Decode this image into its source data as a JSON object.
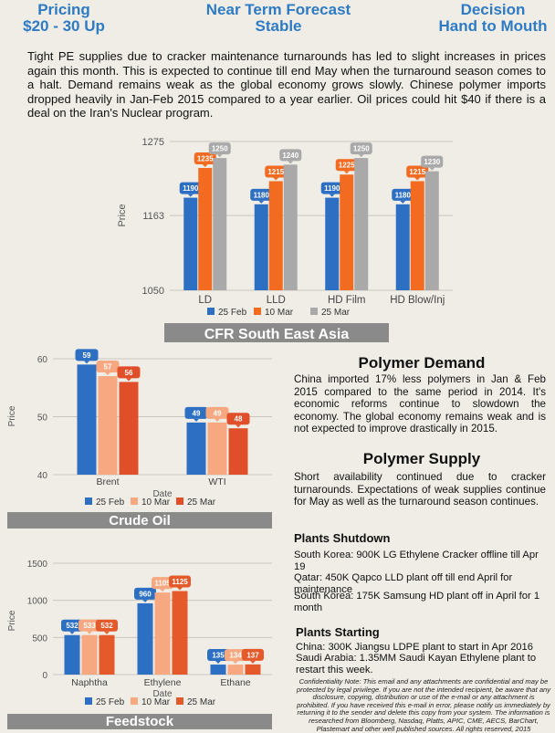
{
  "header": {
    "pricing_label": "Pricing",
    "pricing_value": "$20 - 30 Up",
    "forecast_label": "Near Term Forecast",
    "forecast_value": "Stable",
    "decision_label": "Decision",
    "decision_value": "Hand to Mouth"
  },
  "intro": "Tight PE supplies due to cracker maintenance turnarounds has led to slight increases in prices again this month. This is expected to continue till end May when the turnaround season comes to a halt. Demand remains weak as the global economy grows slowly. Chinese polymer imports dropped heavily in Jan-Feb 2015 compared to a year earlier. Oil prices could hit $40 if there is a deal on the Iran's Nuclear program.",
  "colors": {
    "blue": "#2d6fc3",
    "orange": "#f26b21",
    "gray": "#a9a9a9",
    "salmon": "#f7a880",
    "red": "#e04e2a",
    "brown": "#e55a2b",
    "banner": "#8a8a8a",
    "accent": "#2e7bc4"
  },
  "chart_data": [
    {
      "type": "bar",
      "categories": [
        "LD",
        "LLD",
        "HD Film",
        "HD Blow/Inj"
      ],
      "series": [
        {
          "name": "25 Feb",
          "values": [
            1190,
            1180,
            1190,
            1180
          ]
        },
        {
          "name": "10 Mar",
          "values": [
            1235,
            1215,
            1225,
            1215
          ]
        },
        {
          "name": "25 Mar",
          "values": [
            1250,
            1240,
            1250,
            1230
          ]
        }
      ],
      "ylabel": "Price",
      "ylim": [
        1050,
        1275
      ],
      "yticks": [
        1050,
        1163,
        1275
      ],
      "banner": "CFR South East Asia",
      "legend_position": "bottom",
      "grid": true
    },
    {
      "type": "bar",
      "categories": [
        "Brent",
        "WTI"
      ],
      "series": [
        {
          "name": "25 Feb",
          "values": [
            59,
            49
          ]
        },
        {
          "name": "10 Mar",
          "values": [
            57,
            49
          ]
        },
        {
          "name": "25 Mar",
          "values": [
            56,
            48
          ]
        }
      ],
      "xlabel": "Date",
      "ylabel": "Price",
      "ylim": [
        40,
        60
      ],
      "yticks": [
        40,
        50,
        60
      ],
      "banner": "Crude Oil",
      "legend_position": "bottom",
      "grid": true
    },
    {
      "type": "bar",
      "categories": [
        "Naphtha",
        "Ethylene",
        "Ethane"
      ],
      "series": [
        {
          "name": "25 Feb",
          "values": [
            532,
            960,
            135
          ]
        },
        {
          "name": "10 Mar",
          "values": [
            533,
            1105,
            134
          ]
        },
        {
          "name": "25 Mar",
          "values": [
            532,
            1125,
            137
          ]
        }
      ],
      "xlabel": "Date",
      "ylabel": "Price",
      "ylim": [
        0,
        1500
      ],
      "yticks": [
        0,
        500,
        1000,
        1500
      ],
      "banner": "Feedstock",
      "legend_position": "bottom",
      "grid": true
    }
  ],
  "demand": {
    "title": "Polymer Demand",
    "text": "China imported 17% less polymers in Jan & Feb 2015 compared to the same period in 2014. It's economic reforms continue to slowdown the economy. The global economy remains weak and is not expected to improve drastically in 2015."
  },
  "supply": {
    "title": "Polymer Supply",
    "text": "Short availability continued due to cracker turnarounds. Expectations of weak supplies continue for May as well as the turnaround season continues."
  },
  "shutdown": {
    "title": "Plants Shutdown",
    "items": [
      "South Korea: 900K LG Ethylene Cracker offline till Apr 19",
      "Qatar: 450K Qapco LLD plant off till end April for maintenance",
      "South Korea: 175K Samsung HD plant off in April for 1 month"
    ]
  },
  "starting": {
    "title": "Plants Starting",
    "items": [
      "China: 300K Jiangsu LDPE plant to start in Apr 2016",
      "Saudi Arabia: 1.35MM Saudi Kayan Ethylene plant to restart this week."
    ]
  },
  "confidentiality": "Confidentiality Note: This email and any attachments are confidential and may be protected by legal privilege. If you are not the intended recipient, be aware that any disclosure, copying, distribution or use of the e-mail or any attachment is prohibited. If you have received this e-mail in error, please notify us immediately by returning it to the sender and delete this copy from your system. The information is researched from Bloomberg, Nasdaq, Platts, APIC, CME, AECS, BarChart, Plastemart and other well published sources. All rights reserved, 2015"
}
